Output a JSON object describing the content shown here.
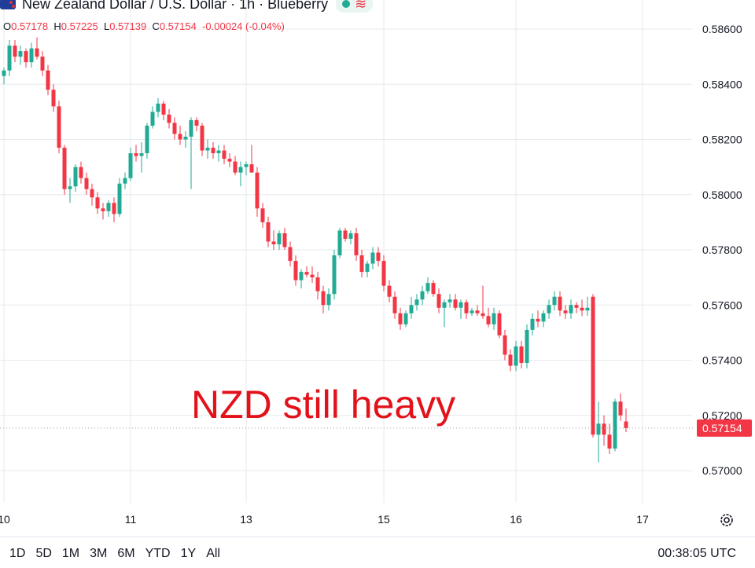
{
  "header": {
    "title": "New Zealand Dollar / U.S. Dollar · 1h · Blueberry",
    "wave_glyph": "≋"
  },
  "ohlc": {
    "o_label": "O",
    "o_value": "0.57178",
    "h_label": "H",
    "h_value": "0.57225",
    "l_label": "L",
    "l_value": "0.57139",
    "c_label": "C",
    "c_value": "0.57154",
    "change": "-0.00024 (-0.04%)"
  },
  "overlay_text": "NZD still heavy",
  "time_ranges": [
    "1D",
    "5D",
    "1M",
    "3M",
    "6M",
    "YTD",
    "1Y",
    "All"
  ],
  "clock": "00:38:05 UTC",
  "icons": {
    "settings": "gear-icon",
    "flag": "nz-us-flag-icon",
    "live": "live-dot-icon"
  },
  "colors": {
    "up": "#22ab94",
    "down": "#f23645",
    "grid": "#e6e8ee",
    "overlay": "#e3121a"
  },
  "chart_data": {
    "type": "candlestick",
    "title": "New Zealand Dollar / U.S. Dollar · 1h · Blueberry",
    "ylim": [
      0.5688,
      0.5864
    ],
    "y_ticks": [
      "0.58600",
      "0.58400",
      "0.58200",
      "0.58000",
      "0.57800",
      "0.57600",
      "0.57400",
      "0.57200",
      "0.57000"
    ],
    "x_ticks": [
      {
        "label": "10",
        "index": 0
      },
      {
        "label": "11",
        "index": 23
      },
      {
        "label": "13",
        "index": 44
      },
      {
        "label": "15",
        "index": 69
      },
      {
        "label": "16",
        "index": 93
      },
      {
        "label": "17",
        "index": 116
      }
    ],
    "last_price": "0.57154",
    "last_price_value": 0.57154,
    "grid": true,
    "candles": [
      [
        0.5843,
        0.5846,
        0.584,
        0.5845
      ],
      [
        0.5845,
        0.5856,
        0.5843,
        0.5854
      ],
      [
        0.5854,
        0.5856,
        0.5848,
        0.585
      ],
      [
        0.585,
        0.5854,
        0.5847,
        0.5852
      ],
      [
        0.5852,
        0.5853,
        0.5846,
        0.5848
      ],
      [
        0.5848,
        0.5855,
        0.5846,
        0.5853
      ],
      [
        0.5853,
        0.5857,
        0.5849,
        0.585
      ],
      [
        0.585,
        0.5852,
        0.5843,
        0.5845
      ],
      [
        0.5845,
        0.5847,
        0.5836,
        0.5838
      ],
      [
        0.5838,
        0.584,
        0.583,
        0.5832
      ],
      [
        0.5832,
        0.5834,
        0.5815,
        0.5817
      ],
      [
        0.5817,
        0.5818,
        0.58,
        0.5802
      ],
      [
        0.5802,
        0.5806,
        0.5797,
        0.5803
      ],
      [
        0.5803,
        0.5811,
        0.5801,
        0.581
      ],
      [
        0.581,
        0.5812,
        0.5804,
        0.5806
      ],
      [
        0.5806,
        0.5808,
        0.58,
        0.5802
      ],
      [
        0.5802,
        0.5804,
        0.5796,
        0.5799
      ],
      [
        0.5799,
        0.5801,
        0.5793,
        0.5795
      ],
      [
        0.5795,
        0.5797,
        0.5791,
        0.5794
      ],
      [
        0.5794,
        0.5798,
        0.5792,
        0.5797
      ],
      [
        0.5797,
        0.5799,
        0.579,
        0.5793
      ],
      [
        0.5793,
        0.5806,
        0.5792,
        0.5804
      ],
      [
        0.5804,
        0.5808,
        0.5802,
        0.5806
      ],
      [
        0.5806,
        0.5817,
        0.5805,
        0.5815
      ],
      [
        0.5815,
        0.5818,
        0.5812,
        0.5814
      ],
      [
        0.5814,
        0.5819,
        0.5808,
        0.5815
      ],
      [
        0.5815,
        0.5826,
        0.5813,
        0.5825
      ],
      [
        0.5825,
        0.5832,
        0.5824,
        0.583
      ],
      [
        0.583,
        0.5835,
        0.5828,
        0.5833
      ],
      [
        0.5833,
        0.5834,
        0.5827,
        0.5829
      ],
      [
        0.5829,
        0.5831,
        0.5824,
        0.5826
      ],
      [
        0.5826,
        0.5828,
        0.582,
        0.5822
      ],
      [
        0.5822,
        0.5825,
        0.5818,
        0.582
      ],
      [
        0.582,
        0.5823,
        0.5817,
        0.5821
      ],
      [
        0.5821,
        0.5828,
        0.5802,
        0.5827
      ],
      [
        0.5827,
        0.5828,
        0.5823,
        0.5825
      ],
      [
        0.5825,
        0.5826,
        0.5814,
        0.5816
      ],
      [
        0.5816,
        0.582,
        0.5813,
        0.5817
      ],
      [
        0.5817,
        0.5819,
        0.5813,
        0.5815
      ],
      [
        0.5815,
        0.5818,
        0.5812,
        0.5816
      ],
      [
        0.5816,
        0.5818,
        0.5811,
        0.5813
      ],
      [
        0.5813,
        0.5815,
        0.581,
        0.5812
      ],
      [
        0.5812,
        0.5814,
        0.5807,
        0.5808
      ],
      [
        0.5808,
        0.5812,
        0.5803,
        0.581
      ],
      [
        0.581,
        0.5812,
        0.5807,
        0.5811
      ],
      [
        0.5811,
        0.5818,
        0.5809,
        0.5808
      ],
      [
        0.5808,
        0.581,
        0.5792,
        0.5795
      ],
      [
        0.5795,
        0.5797,
        0.5788,
        0.579
      ],
      [
        0.579,
        0.5792,
        0.5781,
        0.5783
      ],
      [
        0.5783,
        0.5787,
        0.578,
        0.5782
      ],
      [
        0.5782,
        0.5787,
        0.578,
        0.5786
      ],
      [
        0.5786,
        0.5788,
        0.578,
        0.5781
      ],
      [
        0.5781,
        0.5783,
        0.5774,
        0.5776
      ],
      [
        0.5776,
        0.5778,
        0.5767,
        0.5769
      ],
      [
        0.5769,
        0.5773,
        0.5766,
        0.5772
      ],
      [
        0.5772,
        0.5774,
        0.577,
        0.5771
      ],
      [
        0.5771,
        0.5774,
        0.5768,
        0.577
      ],
      [
        0.577,
        0.5772,
        0.5762,
        0.5765
      ],
      [
        0.5765,
        0.5767,
        0.5757,
        0.576
      ],
      [
        0.576,
        0.5766,
        0.5758,
        0.5764
      ],
      [
        0.5764,
        0.578,
        0.5762,
        0.5778
      ],
      [
        0.5778,
        0.5788,
        0.5777,
        0.5787
      ],
      [
        0.5787,
        0.5788,
        0.5783,
        0.5784
      ],
      [
        0.5784,
        0.5787,
        0.5782,
        0.5786
      ],
      [
        0.5786,
        0.5788,
        0.5776,
        0.5778
      ],
      [
        0.5778,
        0.578,
        0.577,
        0.5772
      ],
      [
        0.5772,
        0.5776,
        0.577,
        0.5775
      ],
      [
        0.5775,
        0.5781,
        0.5773,
        0.5779
      ],
      [
        0.5779,
        0.5781,
        0.5774,
        0.5776
      ],
      [
        0.5776,
        0.5778,
        0.5765,
        0.5767
      ],
      [
        0.5767,
        0.5769,
        0.5761,
        0.5763
      ],
      [
        0.5763,
        0.5765,
        0.5755,
        0.5757
      ],
      [
        0.5757,
        0.5759,
        0.5751,
        0.5753
      ],
      [
        0.5753,
        0.5758,
        0.5752,
        0.5757
      ],
      [
        0.5757,
        0.5763,
        0.5755,
        0.576
      ],
      [
        0.576,
        0.5764,
        0.5758,
        0.5762
      ],
      [
        0.5762,
        0.5767,
        0.576,
        0.5765
      ],
      [
        0.5765,
        0.577,
        0.5764,
        0.5768
      ],
      [
        0.5768,
        0.5769,
        0.5763,
        0.5764
      ],
      [
        0.5764,
        0.5766,
        0.5757,
        0.5759
      ],
      [
        0.5759,
        0.5762,
        0.5752,
        0.5761
      ],
      [
        0.5761,
        0.5764,
        0.5759,
        0.5762
      ],
      [
        0.5762,
        0.5764,
        0.5758,
        0.5759
      ],
      [
        0.5759,
        0.5762,
        0.5755,
        0.5761
      ],
      [
        0.5761,
        0.5762,
        0.5755,
        0.5757
      ],
      [
        0.5757,
        0.5759,
        0.5756,
        0.5758
      ],
      [
        0.5758,
        0.576,
        0.5756,
        0.5757
      ],
      [
        0.5757,
        0.5767,
        0.5755,
        0.5756
      ],
      [
        0.5756,
        0.5759,
        0.5752,
        0.5753
      ],
      [
        0.5753,
        0.5759,
        0.5751,
        0.5757
      ],
      [
        0.5757,
        0.5758,
        0.5748,
        0.5749
      ],
      [
        0.5749,
        0.5751,
        0.574,
        0.5742
      ],
      [
        0.5742,
        0.5744,
        0.5736,
        0.5738
      ],
      [
        0.5738,
        0.5747,
        0.5736,
        0.5745
      ],
      [
        0.5745,
        0.5747,
        0.5737,
        0.5739
      ],
      [
        0.5739,
        0.5753,
        0.5737,
        0.5751
      ],
      [
        0.5751,
        0.5757,
        0.5749,
        0.5755
      ],
      [
        0.5755,
        0.5758,
        0.5752,
        0.5754
      ],
      [
        0.5754,
        0.5758,
        0.5752,
        0.5757
      ],
      [
        0.5757,
        0.5762,
        0.5755,
        0.576
      ],
      [
        0.576,
        0.5765,
        0.5758,
        0.5763
      ],
      [
        0.5763,
        0.5765,
        0.5756,
        0.5758
      ],
      [
        0.5758,
        0.576,
        0.5755,
        0.5757
      ],
      [
        0.5757,
        0.5762,
        0.5755,
        0.576
      ],
      [
        0.576,
        0.5761,
        0.5757,
        0.5759
      ],
      [
        0.5759,
        0.5762,
        0.5756,
        0.5758
      ],
      [
        0.5758,
        0.5763,
        0.5756,
        0.5759
      ],
      [
        0.5763,
        0.5764,
        0.5712,
        0.5713
      ],
      [
        0.5713,
        0.5725,
        0.5703,
        0.5717
      ],
      [
        0.5717,
        0.572,
        0.5709,
        0.5713
      ],
      [
        0.5713,
        0.5717,
        0.5706,
        0.5708
      ],
      [
        0.5708,
        0.5726,
        0.5707,
        0.5725
      ],
      [
        0.5725,
        0.5728,
        0.5718,
        0.572
      ],
      [
        0.57178,
        0.57225,
        0.57139,
        0.57154
      ]
    ]
  }
}
